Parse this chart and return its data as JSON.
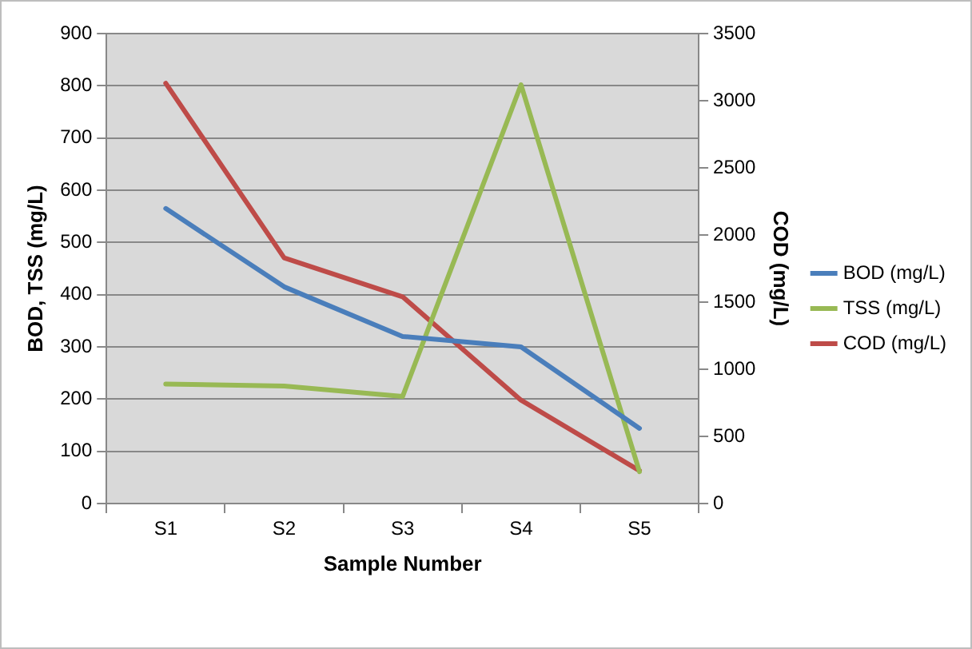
{
  "chart_data": {
    "type": "line",
    "xlabel": "Sample Number",
    "ylabel": "BOD, TSS (mg/L)",
    "y2label": "COD (mg/L)",
    "categories": [
      "S1",
      "S2",
      "S3",
      "S4",
      "S5"
    ],
    "series": [
      {
        "name": "BOD (mg/L)",
        "color": "#4a7ebb",
        "values": [
          565,
          415,
          320,
          300,
          144
        ]
      },
      {
        "name": "TSS (mg/L)",
        "color": "#98b954",
        "values": [
          229,
          225,
          205,
          802,
          61
        ]
      },
      {
        "name": "COD (mg/L)",
        "color": "#be4b48",
        "axis": "y2",
        "values": [
          3130,
          1830,
          1540,
          770,
          245
        ]
      }
    ],
    "ylim": [
      0,
      900
    ],
    "yticks": [
      0,
      100,
      200,
      300,
      400,
      500,
      600,
      700,
      800,
      900
    ],
    "y2lim": [
      0,
      3500
    ],
    "y2ticks": [
      0,
      500,
      1000,
      1500,
      2000,
      2500,
      3000,
      3500
    ],
    "grid": "y",
    "legend": "right",
    "marker": "none",
    "line_style": "solid"
  }
}
